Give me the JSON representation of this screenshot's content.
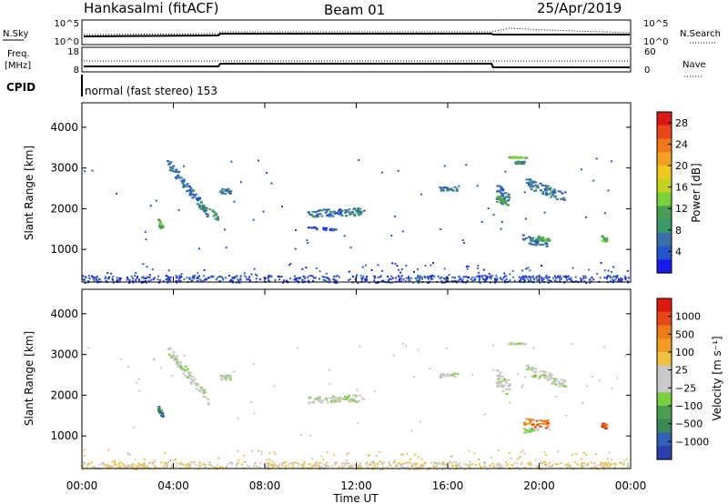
{
  "header": {
    "station": "Hankasalmi (fitACF)",
    "beam": "Beam 01",
    "date": "25/Apr/2019"
  },
  "top_panels": {
    "nsky_label": "N.Sky",
    "nsky_ticks": [
      "10^5",
      "10^0"
    ],
    "nsearch_label": "N.Search",
    "nsearch_ticks": [
      "10^5",
      "10^0"
    ],
    "freq_label_1": "Freq.",
    "freq_label_2": "[MHz]",
    "freq_ticks": [
      "18",
      "8"
    ],
    "nave_label": "Nave",
    "nave_ticks": [
      "60",
      "0"
    ],
    "cpid_label": "CPID",
    "cpid_text": "normal (fast stereo) 153"
  },
  "colors": {
    "power_scale": [
      "#1a1aee",
      "#2255cc",
      "#3a6fa8",
      "#3c9a6a",
      "#4a9e52",
      "#78d23a",
      "#c4d21e",
      "#f0c820",
      "#f5a020",
      "#f07818",
      "#e84818",
      "#dd1a12"
    ],
    "velocity_scale": [
      "#2b3fb0",
      "#2f62b8",
      "#3a8a58",
      "#4a9e52",
      "#78d23a",
      "#c9c9c9",
      "#c9c9c9",
      "#f0c040",
      "#f59a22",
      "#ee7a18",
      "#e84818",
      "#dd1a12"
    ],
    "ground": "#9aa39a"
  },
  "chart_data": [
    {
      "type": "heatmap",
      "name": "power",
      "x_ticks": [
        "00:00",
        "04:00",
        "08:00",
        "12:00",
        "16:00",
        "20:00",
        "00:00"
      ],
      "ylabel": "Slant Range [km]",
      "y_ticks": [
        1000,
        2000,
        3000,
        4000
      ],
      "ylim": [
        200,
        4600
      ],
      "colorbar_label": "Power [dB]",
      "colorbar_ticks": [
        4,
        8,
        12,
        16,
        20,
        24,
        28
      ],
      "colorbar_range": [
        0,
        30
      ],
      "blobs": [
        {
          "t0": 3.7,
          "t1": 5.5,
          "r0": 3150,
          "r1": 1900,
          "width": 250,
          "level": 2
        },
        {
          "t0": 5.0,
          "t1": 5.9,
          "r0": 2200,
          "r1": 1800,
          "width": 150,
          "level": 3
        },
        {
          "t0": 6.0,
          "t1": 6.5,
          "r0": 2450,
          "r1": 2450,
          "width": 120,
          "level": 2
        },
        {
          "t0": 3.3,
          "t1": 3.5,
          "r0": 1700,
          "r1": 1500,
          "width": 150,
          "level": 4
        },
        {
          "t0": 9.8,
          "t1": 12.3,
          "r0": 1900,
          "r1": 1950,
          "width": 180,
          "level": 2
        },
        {
          "t0": 9.8,
          "t1": 11.4,
          "r0": 1550,
          "r1": 1500,
          "width": 60,
          "level": 1
        },
        {
          "t0": 15.6,
          "t1": 16.4,
          "r0": 2500,
          "r1": 2500,
          "width": 100,
          "level": 2
        },
        {
          "t0": 18.1,
          "t1": 18.7,
          "r0": 2450,
          "r1": 2150,
          "width": 400,
          "level": 2
        },
        {
          "t0": 18.1,
          "t1": 18.5,
          "r0": 2250,
          "r1": 2200,
          "width": 150,
          "level": 4
        },
        {
          "t0": 18.9,
          "t1": 19.3,
          "r0": 3150,
          "r1": 3150,
          "width": 60,
          "level": 3
        },
        {
          "t0": 18.6,
          "t1": 19.4,
          "r0": 3280,
          "r1": 3280,
          "width": 40,
          "level": 5
        },
        {
          "t0": 19.4,
          "t1": 21.1,
          "r0": 2650,
          "r1": 2300,
          "width": 250,
          "level": 2
        },
        {
          "t0": 19.2,
          "t1": 20.3,
          "r0": 1300,
          "r1": 1150,
          "width": 200,
          "level": 2
        },
        {
          "t0": 19.8,
          "t1": 20.4,
          "r0": 1300,
          "r1": 1250,
          "width": 100,
          "level": 4
        },
        {
          "t0": 22.7,
          "t1": 22.9,
          "r0": 1300,
          "r1": 1250,
          "width": 120,
          "level": 4
        }
      ]
    },
    {
      "type": "heatmap",
      "name": "velocity",
      "x_ticks": [
        "00:00",
        "04:00",
        "08:00",
        "12:00",
        "16:00",
        "20:00",
        "00:00"
      ],
      "xlabel": "Time UT",
      "ylabel": "Slant Range [km]",
      "y_ticks": [
        1000,
        2000,
        3000,
        4000
      ],
      "ylim": [
        200,
        4600
      ],
      "colorbar_label": "Velocity [m s⁻¹]",
      "colorbar_ticks": [
        "1000",
        "500",
        "100",
        "25",
        "−25",
        "−100",
        "−500",
        "−1000"
      ],
      "blobs": [
        {
          "t0": 3.7,
          "t1": 5.5,
          "r0": 3150,
          "r1": 1900,
          "width": 250,
          "level": 5
        },
        {
          "t0": 6.0,
          "t1": 6.5,
          "r0": 2450,
          "r1": 2450,
          "width": 120,
          "level": 5
        },
        {
          "t0": 3.3,
          "t1": 3.5,
          "r0": 1700,
          "r1": 1500,
          "width": 150,
          "level": 2
        },
        {
          "t0": 9.8,
          "t1": 12.3,
          "r0": 1900,
          "r1": 1950,
          "width": 180,
          "level": 5
        },
        {
          "t0": 15.6,
          "t1": 16.4,
          "r0": 2500,
          "r1": 2500,
          "width": 100,
          "level": 5
        },
        {
          "t0": 18.1,
          "t1": 18.7,
          "r0": 2450,
          "r1": 2150,
          "width": 400,
          "level": 5
        },
        {
          "t0": 18.6,
          "t1": 19.4,
          "r0": 3280,
          "r1": 3280,
          "width": 40,
          "level": 5
        },
        {
          "t0": 19.4,
          "t1": 21.1,
          "r0": 2650,
          "r1": 2300,
          "width": 250,
          "level": 5
        },
        {
          "t0": 19.3,
          "t1": 20.4,
          "r0": 1350,
          "r1": 1300,
          "width": 200,
          "level": 9
        },
        {
          "t0": 19.2,
          "t1": 19.9,
          "r0": 1150,
          "r1": 1150,
          "width": 100,
          "level": 4
        },
        {
          "t0": 22.7,
          "t1": 22.9,
          "r0": 1300,
          "r1": 1250,
          "width": 120,
          "level": 10
        }
      ]
    }
  ]
}
